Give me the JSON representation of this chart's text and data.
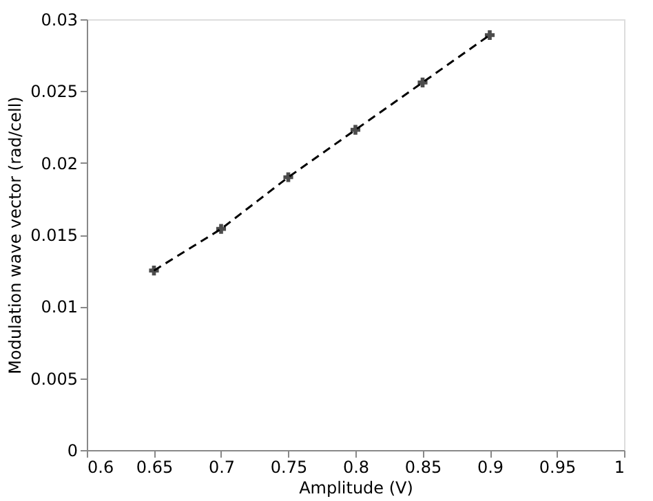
{
  "chart_data": {
    "type": "line",
    "xlabel": "Amplitude (V)",
    "ylabel": "Modulation wave vector (rad/cell)",
    "x": [
      0.65,
      0.7,
      0.75,
      0.8,
      0.85,
      0.9
    ],
    "series": [
      {
        "color": "#000000",
        "values": [
          0.0125,
          0.0154,
          0.019,
          0.0223,
          0.0256,
          0.0289
        ]
      }
    ],
    "xlim": [
      0.6,
      1.0
    ],
    "xticks": [
      0.6,
      0.65,
      0.7,
      0.75,
      0.8,
      0.85,
      0.9,
      0.95,
      1
    ],
    "ylim": [
      0,
      0.03
    ],
    "yticks": [
      0,
      0.005,
      0.01,
      0.015,
      0.02,
      0.025,
      0.03
    ],
    "marker": "cross",
    "line_style": "dashed",
    "grid": false
  }
}
